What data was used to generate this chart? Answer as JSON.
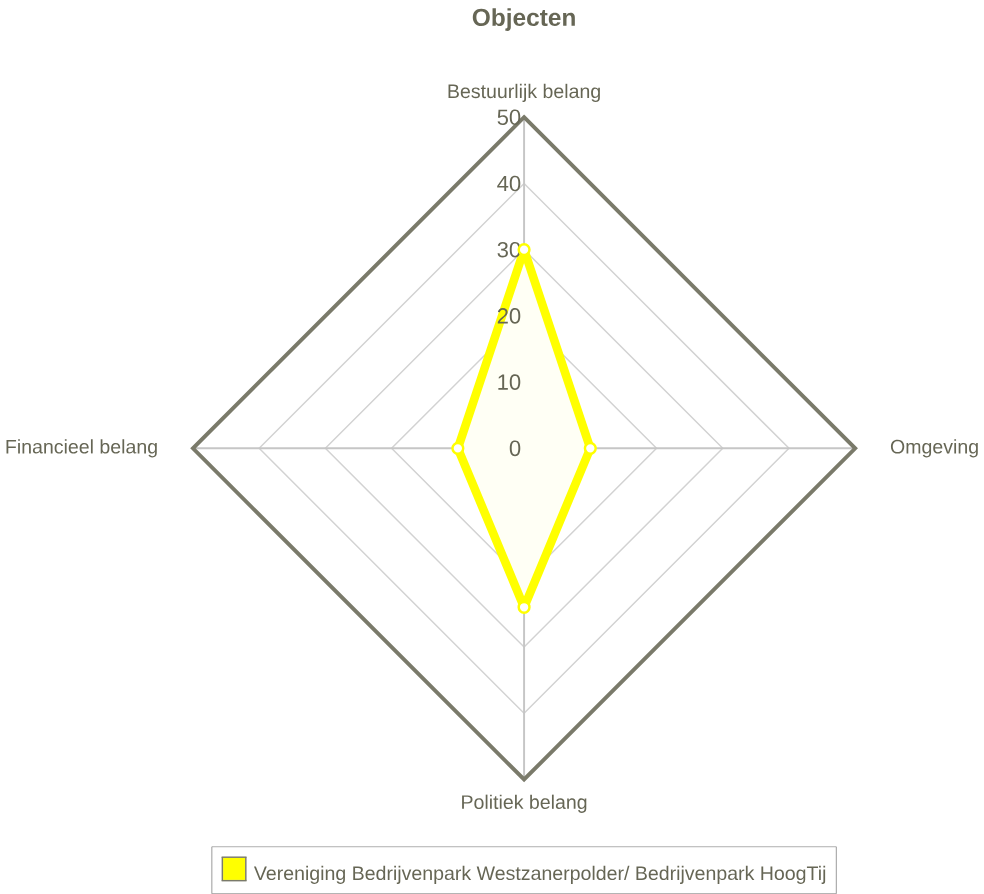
{
  "chart_data": {
    "type": "radar",
    "title": "Objecten",
    "categories": [
      "Bestuurlijk belang",
      "Omgeving",
      "Politiek belang",
      "Financieel belang"
    ],
    "series": [
      {
        "name": "Vereniging Bedrijvenpark Westzanerpolder/ Bedrijvenpark HoogTij",
        "color": "#ffff00",
        "values": [
          30,
          10,
          24,
          10
        ]
      }
    ],
    "ylim": [
      0,
      50
    ],
    "yticks": [
      0,
      10,
      20,
      30,
      40,
      50
    ],
    "grid": true,
    "marker": "circle",
    "legend": "bottom"
  }
}
